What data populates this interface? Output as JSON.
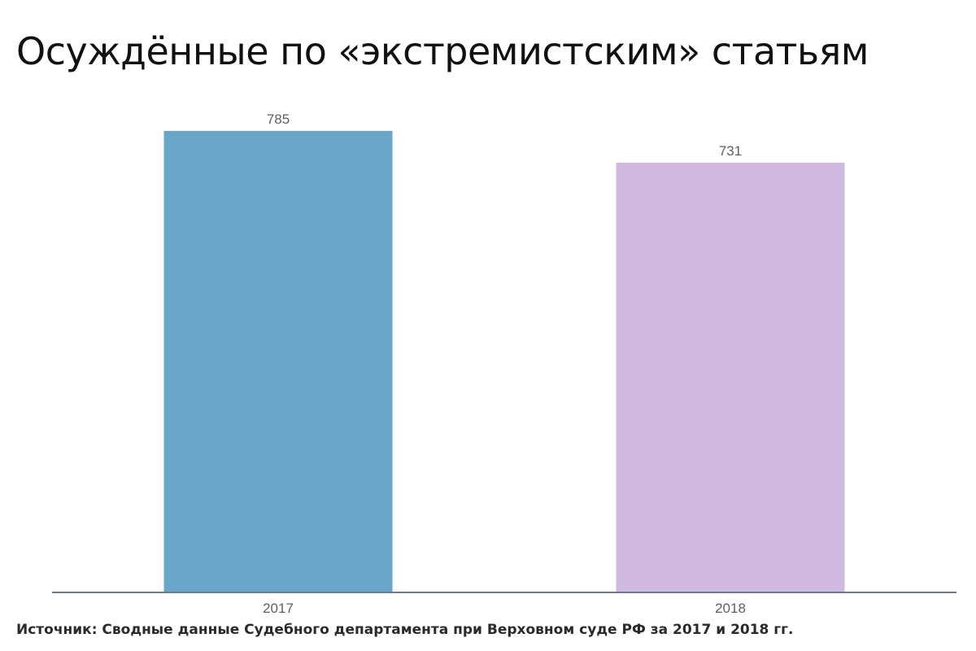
{
  "title": "Осуждённые по «экстремистским» статьям",
  "source": "Источник: Сводные данные Судебного департамента при Верховном суде РФ за 2017 и 2018 гг.",
  "chart_data": {
    "type": "bar",
    "categories": [
      "2017",
      "2018"
    ],
    "values": [
      785,
      731
    ],
    "data_labels": [
      "785",
      "731"
    ],
    "colors": [
      "#69a6c9",
      "#d1badf"
    ],
    "axis_color": "#6a7c8c",
    "label_color": "#5f5f5f",
    "ylim": [
      0,
      800
    ],
    "grid": false,
    "legend": "none",
    "xlabel": "",
    "ylabel": ""
  }
}
